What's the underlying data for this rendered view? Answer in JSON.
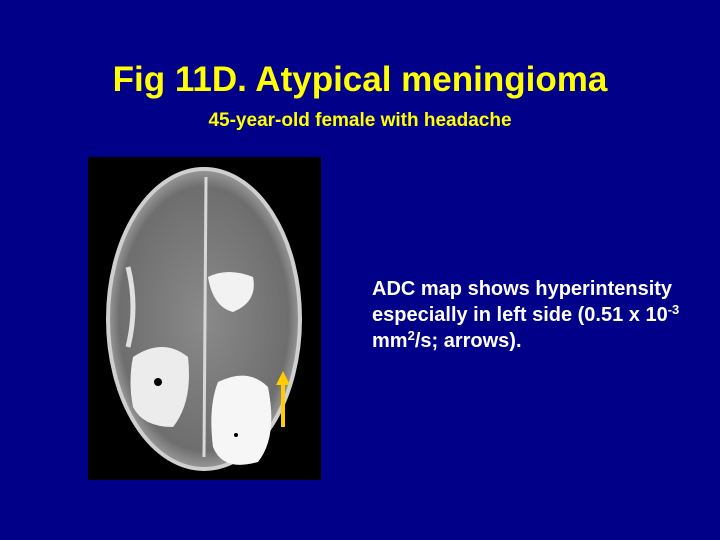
{
  "slide": {
    "title": "Fig 11D. Atypical meningioma",
    "subtitle": "45-year-old female with headache",
    "body": {
      "text_1": "ADC map shows hyperintensity especially in left side (0.51 x 10",
      "sup_1": "-3",
      "text_2": " mm",
      "sup_2": "2",
      "text_3": "/s; arrows)."
    }
  }
}
